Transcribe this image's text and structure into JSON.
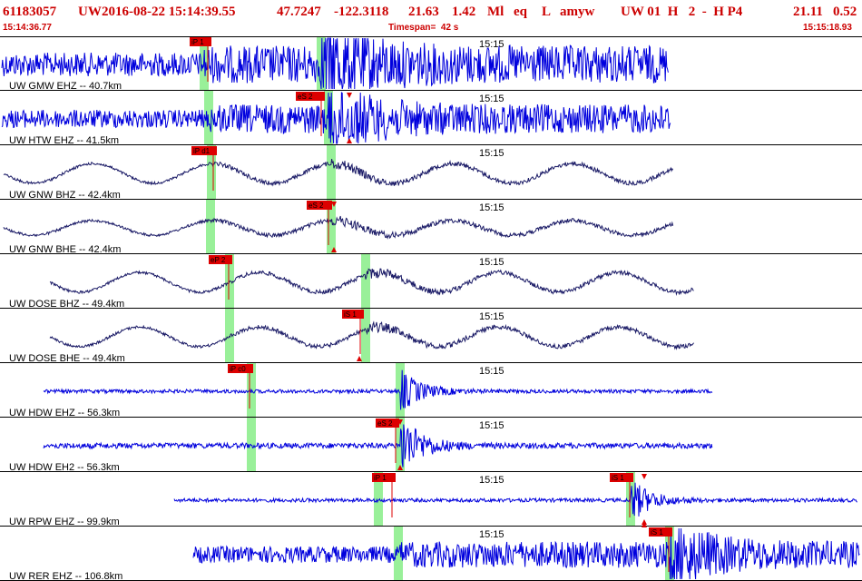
{
  "header": {
    "event_id": "61183057",
    "network": "UW",
    "datetime": "2016-08-22 15:14:39.55",
    "lat": "47.7247",
    "lon": "-122.3118",
    "depth": "21.63",
    "magnitude": "1.42",
    "mag_type": "Ml",
    "event_type": "eq",
    "flag": "L",
    "author": "amyw",
    "origin_info": "UW 01  H   2  -  H P4",
    "rms": "21.11",
    "gap": "0.52",
    "start_time": "15:14:36.77",
    "timespan": "Timespan=  42 s",
    "end_time": "15:15:18.93"
  },
  "colors": {
    "header_text": "#cc0000",
    "trace_blue": "#0000dd",
    "trace_navy": "#1a1a66",
    "pick_red": "#dd0000",
    "marker_green": "#99f099",
    "separator": "#000000"
  },
  "minute_tick_label": "15:15",
  "traces": [
    {
      "label": "UW GMW EHZ -- 40.7km",
      "color": "blue",
      "amplitude": "high",
      "style": "noise"
    },
    {
      "label": "UW HTW EHZ -- 41.5km",
      "color": "blue",
      "amplitude": "medium",
      "style": "noise"
    },
    {
      "label": "UW GNW BHZ -- 42.4km",
      "color": "navy",
      "amplitude": "medium",
      "style": "wave"
    },
    {
      "label": "UW GNW BHE -- 42.4km",
      "color": "navy",
      "amplitude": "low",
      "style": "wave"
    },
    {
      "label": "UW DOSE BHZ -- 49.4km",
      "color": "navy",
      "amplitude": "medium",
      "style": "wave"
    },
    {
      "label": "UW DOSE BHE -- 49.4km",
      "color": "navy",
      "amplitude": "medium",
      "style": "wave"
    },
    {
      "label": "UW HDW EHZ -- 56.3km",
      "color": "blue",
      "amplitude": "low",
      "style": "flat"
    },
    {
      "label": "UW HDW EH2 -- 56.3km",
      "color": "blue",
      "amplitude": "low",
      "style": "flat"
    },
    {
      "label": "UW RPW EHZ -- 99.9km",
      "color": "blue",
      "amplitude": "low",
      "style": "flat"
    },
    {
      "label": "UW RER EHZ -- 106.8km",
      "color": "blue",
      "amplitude": "high",
      "style": "noise"
    }
  ],
  "picks": [
    {
      "trace": 0,
      "label": "iP 1",
      "type": "P"
    },
    {
      "trace": 1,
      "label": "eS 2",
      "type": "S"
    },
    {
      "trace": 2,
      "label": "iP d1",
      "type": "P"
    },
    {
      "trace": 3,
      "label": "eS 2",
      "type": "S"
    },
    {
      "trace": 4,
      "label": "eP 2",
      "type": "P"
    },
    {
      "trace": 5,
      "label": "iS 1",
      "type": "S"
    },
    {
      "trace": 6,
      "label": "iP c0",
      "type": "P"
    },
    {
      "trace": 7,
      "label": "eS 2",
      "type": "S"
    },
    {
      "trace": 8,
      "label": "iP 1",
      "type": "P"
    },
    {
      "trace": 8,
      "label": "iS 1",
      "type": "S"
    },
    {
      "trace": 9,
      "label": "iS 1",
      "type": "S"
    }
  ]
}
